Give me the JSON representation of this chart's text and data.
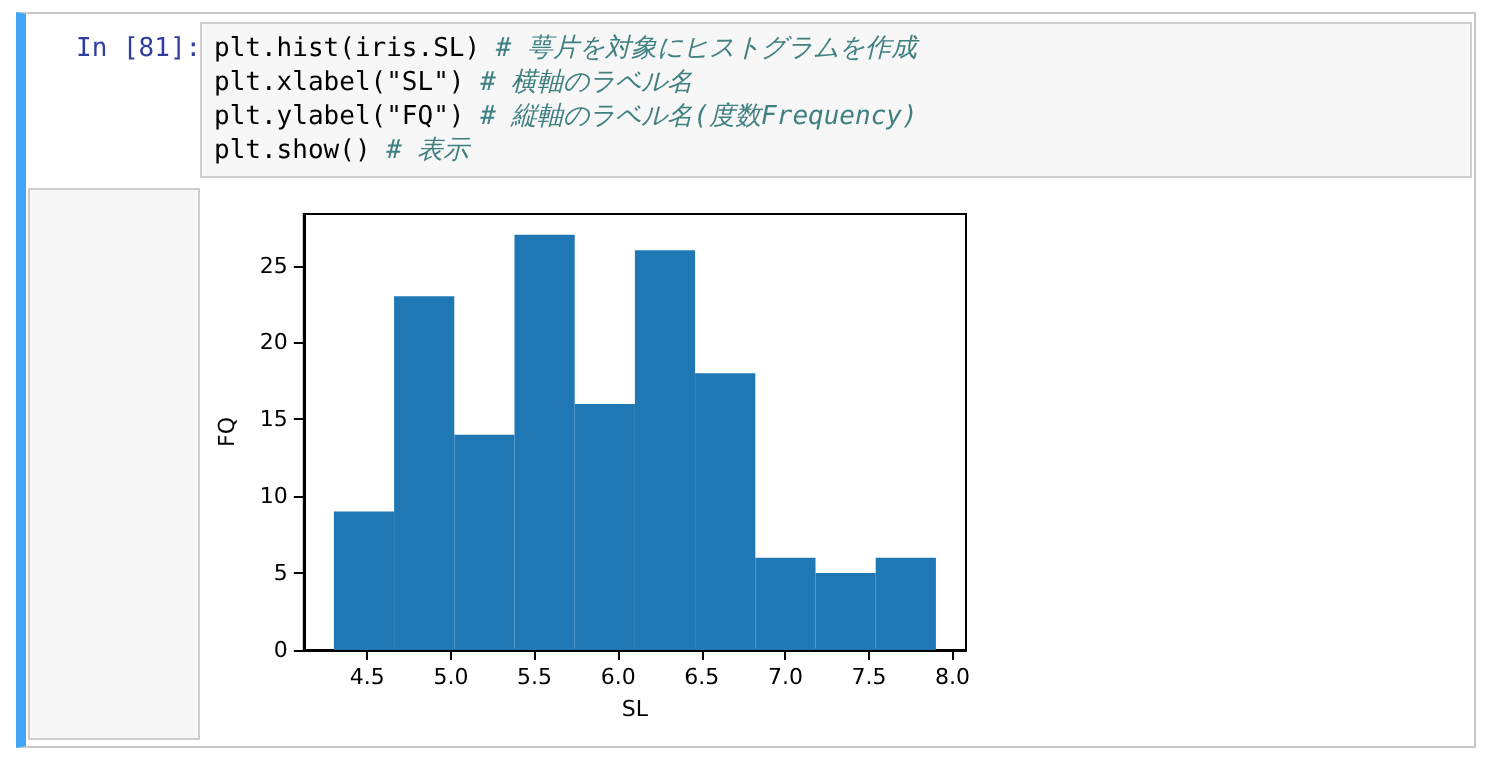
{
  "chart_data": {
    "type": "histogram",
    "xlabel": "SL",
    "ylabel": "FQ",
    "bins": [
      4.3,
      4.66,
      5.02,
      5.38,
      5.74,
      6.1,
      6.46,
      6.82,
      7.18,
      7.54,
      7.9
    ],
    "values": [
      9,
      23,
      14,
      27,
      16,
      26,
      18,
      6,
      5,
      6
    ],
    "color": "#1f77b4",
    "xlim": [
      4.12,
      8.08
    ],
    "xticks": [
      {
        "value": 4.5,
        "label": "4.5"
      },
      {
        "value": 5.0,
        "label": "5.0"
      },
      {
        "value": 5.5,
        "label": "5.5"
      },
      {
        "value": 6.0,
        "label": "6.0"
      },
      {
        "value": 6.5,
        "label": "6.5"
      },
      {
        "value": 7.0,
        "label": "7.0"
      },
      {
        "value": 7.5,
        "label": "7.5"
      },
      {
        "value": 8.0,
        "label": "8.0"
      }
    ],
    "ylim": [
      0,
      28.35
    ],
    "yticks": [
      0,
      5,
      10,
      15,
      20,
      25
    ],
    "grid": false,
    "annotations": [
      "In [81]:",
      "plt.hist(iris.SL) # 萼片を対象にヒストグラムを作成",
      "plt.xlabel(\"SL\") # 横軸のラベル名",
      "plt.ylabel(\"FQ\") # 縦軸のラベル名(度数Frequency)",
      "plt.show() # 表示"
    ]
  }
}
